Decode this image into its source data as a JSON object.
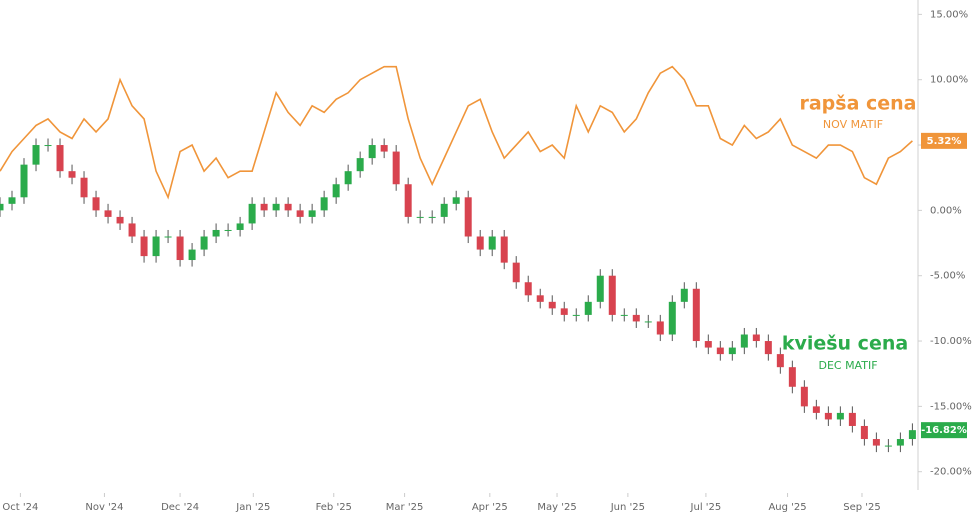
{
  "chart_data": {
    "type": "combo",
    "xlim": [
      0,
      76.3
    ],
    "xticks": [
      {
        "value": 1.7,
        "label": "Oct '24"
      },
      {
        "value": 8.7,
        "label": "Nov '24"
      },
      {
        "value": 15,
        "label": "Dec '24"
      },
      {
        "value": 21.1,
        "label": "Jan '25"
      },
      {
        "value": 27.8,
        "label": "Feb '25"
      },
      {
        "value": 33.7,
        "label": "Mar '25"
      },
      {
        "value": 40.8,
        "label": "Apr '25"
      },
      {
        "value": 46.4,
        "label": "May '25"
      },
      {
        "value": 52.3,
        "label": "Jun '25"
      },
      {
        "value": 58.8,
        "label": "Jul '25"
      },
      {
        "value": 65.6,
        "label": "Aug '25"
      },
      {
        "value": 71.8,
        "label": "Sep '25"
      }
    ],
    "ylim": [
      -21.4,
      16.1
    ],
    "yticks": [
      {
        "value": 15,
        "label": "15.00%"
      },
      {
        "value": 10,
        "label": "10.00%"
      },
      {
        "value": 5,
        "label": "5.00%"
      },
      {
        "value": 0,
        "label": "0.00%"
      },
      {
        "value": -5,
        "label": "-5.00%"
      },
      {
        "value": -10,
        "label": "-10.00%"
      },
      {
        "value": -15,
        "label": "-15.00%"
      },
      {
        "value": -20,
        "label": "-20.00%"
      }
    ],
    "grid": false,
    "series": [
      {
        "type": "line",
        "name": "rapša cena",
        "subtitle": "NOV MATIF",
        "color": "#f0953a",
        "values": [
          3,
          4.5,
          5.5,
          6.5,
          7,
          6,
          5.5,
          7,
          6,
          7,
          10,
          8,
          7,
          3,
          1,
          4.5,
          5,
          3,
          4,
          2.5,
          3,
          3,
          6,
          9,
          7.5,
          6.5,
          8,
          7.5,
          8.5,
          9,
          10,
          10.5,
          11,
          11,
          7,
          4,
          2,
          4,
          6,
          8,
          8.5,
          6,
          4,
          5,
          6,
          4.5,
          5,
          4,
          8,
          6,
          8,
          7.5,
          6,
          7,
          9,
          10.5,
          11,
          10,
          8,
          8,
          5.5,
          5,
          6.5,
          5.5,
          6,
          7,
          5,
          4.5,
          4,
          5,
          5,
          4.5,
          2.5,
          2,
          4,
          4.5,
          5.32
        ],
        "value_labels": [
          null,
          null,
          null,
          null,
          null,
          null,
          null,
          null,
          null,
          null,
          null,
          null,
          null,
          null,
          null,
          null,
          null,
          null,
          null,
          null,
          null,
          null,
          null,
          null,
          null,
          null,
          null,
          null,
          null,
          null,
          null,
          null,
          null,
          null,
          null,
          null,
          null,
          null,
          null,
          null,
          null,
          null,
          null,
          null,
          null,
          null,
          null,
          null,
          null,
          null,
          null,
          null,
          null,
          null,
          null,
          null,
          null,
          null,
          null,
          null,
          null,
          null,
          null,
          null,
          null,
          null,
          null,
          null,
          null,
          null,
          null,
          null,
          null,
          null,
          null,
          null,
          "5.32%"
        ]
      },
      {
        "type": "candlestick",
        "name": "kviešu cena",
        "subtitle": "DEC MATIF",
        "color": "#2bab4b",
        "down_color": "#d8434f",
        "wick_color": "#555555",
        "open": [
          0,
          0.5,
          1,
          3.5,
          5,
          5,
          3,
          2.5,
          1,
          0,
          -0.5,
          -1,
          -2,
          -3.5,
          -2,
          -2,
          -3.8,
          -3,
          -2,
          -1.5,
          -1.5,
          -1,
          0.5,
          0,
          0.5,
          0,
          -0.5,
          0,
          1,
          2,
          3,
          4,
          5,
          4.5,
          2,
          -0.5,
          -0.5,
          -0.5,
          0.5,
          1,
          -2,
          -3,
          -2,
          -4,
          -5.5,
          -6.5,
          -7,
          -7.5,
          -8,
          -8,
          -7,
          -5,
          -8,
          -8,
          -8.5,
          -8.5,
          -9.5,
          -7,
          -6,
          -10,
          -10.5,
          -11,
          -10.5,
          -9.5,
          -10,
          -11,
          -12,
          -13.5,
          -15,
          -15.5,
          -16,
          -15.5,
          -16.5,
          -17.5,
          -18,
          -18,
          -17.5
        ],
        "high": [
          1,
          1.5,
          4,
          5.5,
          5.5,
          5.5,
          3.5,
          3,
          1.5,
          0.5,
          0,
          -0.5,
          -1.5,
          -1.5,
          -1.5,
          -1.5,
          -2.5,
          -1.5,
          -1,
          -1,
          -0.5,
          1,
          1,
          1,
          1,
          0.5,
          0.5,
          1.5,
          2.5,
          3.5,
          4.5,
          5.5,
          5.5,
          5,
          2.5,
          0,
          0,
          1,
          1.5,
          1.5,
          -1.5,
          -1.5,
          -1.5,
          -3.5,
          -5,
          -6,
          -6.5,
          -7,
          -7.5,
          -6.5,
          -4.5,
          -4.5,
          -7.5,
          -7.5,
          -8,
          -8,
          -6.5,
          -5.5,
          -5.5,
          -9.5,
          -10,
          -10,
          -9,
          -9,
          -9.5,
          -10.5,
          -11.5,
          -13,
          -14.5,
          -15,
          -15,
          -15,
          -16,
          -17,
          -17.5,
          -17,
          -16.3
        ],
        "low": [
          -0.5,
          0,
          0.5,
          3,
          4.5,
          2.5,
          2,
          0.5,
          -0.5,
          -1,
          -1.5,
          -2.5,
          -4,
          -4,
          -2.5,
          -4.3,
          -4.3,
          -3.5,
          -2.5,
          -2,
          -2,
          -1.5,
          -0.5,
          -0.5,
          -0.5,
          -1,
          -1,
          -0.5,
          0.5,
          1.5,
          2.5,
          3.5,
          4,
          1.5,
          -1,
          -1,
          -1,
          -1,
          0,
          -2.5,
          -3.5,
          -3.5,
          -4.5,
          -6,
          -7,
          -7.5,
          -8,
          -8.5,
          -8.5,
          -8.5,
          -7.5,
          -8.5,
          -8.5,
          -9,
          -9,
          -10,
          -10,
          -7.5,
          -10.5,
          -11,
          -11.5,
          -11.5,
          -11,
          -10.5,
          -11.5,
          -12.5,
          -14,
          -15.5,
          -16,
          -16.5,
          -16.5,
          -17,
          -18,
          -18.5,
          -18.5,
          -18.5,
          -18
        ],
        "close": [
          0.5,
          1,
          3.5,
          5,
          5,
          3,
          2.5,
          1,
          0,
          -0.5,
          -1,
          -2,
          -3.5,
          -2,
          -2,
          -3.8,
          -3,
          -2,
          -1.5,
          -1.5,
          -1,
          0.5,
          0,
          0.5,
          0,
          -0.5,
          0,
          1,
          2,
          3,
          4,
          5,
          4.5,
          2,
          -0.5,
          -0.5,
          -0.5,
          0.5,
          1,
          -2,
          -3,
          -2,
          -4,
          -5.5,
          -6.5,
          -7,
          -7.5,
          -8,
          -8,
          -7,
          -5,
          -8,
          -8,
          -8.5,
          -8.5,
          -9.5,
          -7,
          -6,
          -10,
          -10.5,
          -11,
          -10.5,
          -9.5,
          -10,
          -11,
          -12,
          -13.5,
          -15,
          -15.5,
          -16,
          -15.5,
          -16.5,
          -17.5,
          -18,
          -18,
          -17.5,
          -16.82
        ],
        "value_labels": [
          null,
          null,
          null,
          null,
          null,
          null,
          null,
          null,
          null,
          null,
          null,
          null,
          null,
          null,
          null,
          null,
          null,
          null,
          null,
          null,
          null,
          null,
          null,
          null,
          null,
          null,
          null,
          null,
          null,
          null,
          null,
          null,
          null,
          null,
          null,
          null,
          null,
          null,
          null,
          null,
          null,
          null,
          null,
          null,
          null,
          null,
          null,
          null,
          null,
          null,
          null,
          null,
          null,
          null,
          null,
          null,
          null,
          null,
          null,
          null,
          null,
          null,
          null,
          null,
          null,
          null,
          null,
          null,
          null,
          null,
          null,
          null,
          null,
          null,
          null,
          null,
          "-16.82%"
        ]
      }
    ]
  }
}
